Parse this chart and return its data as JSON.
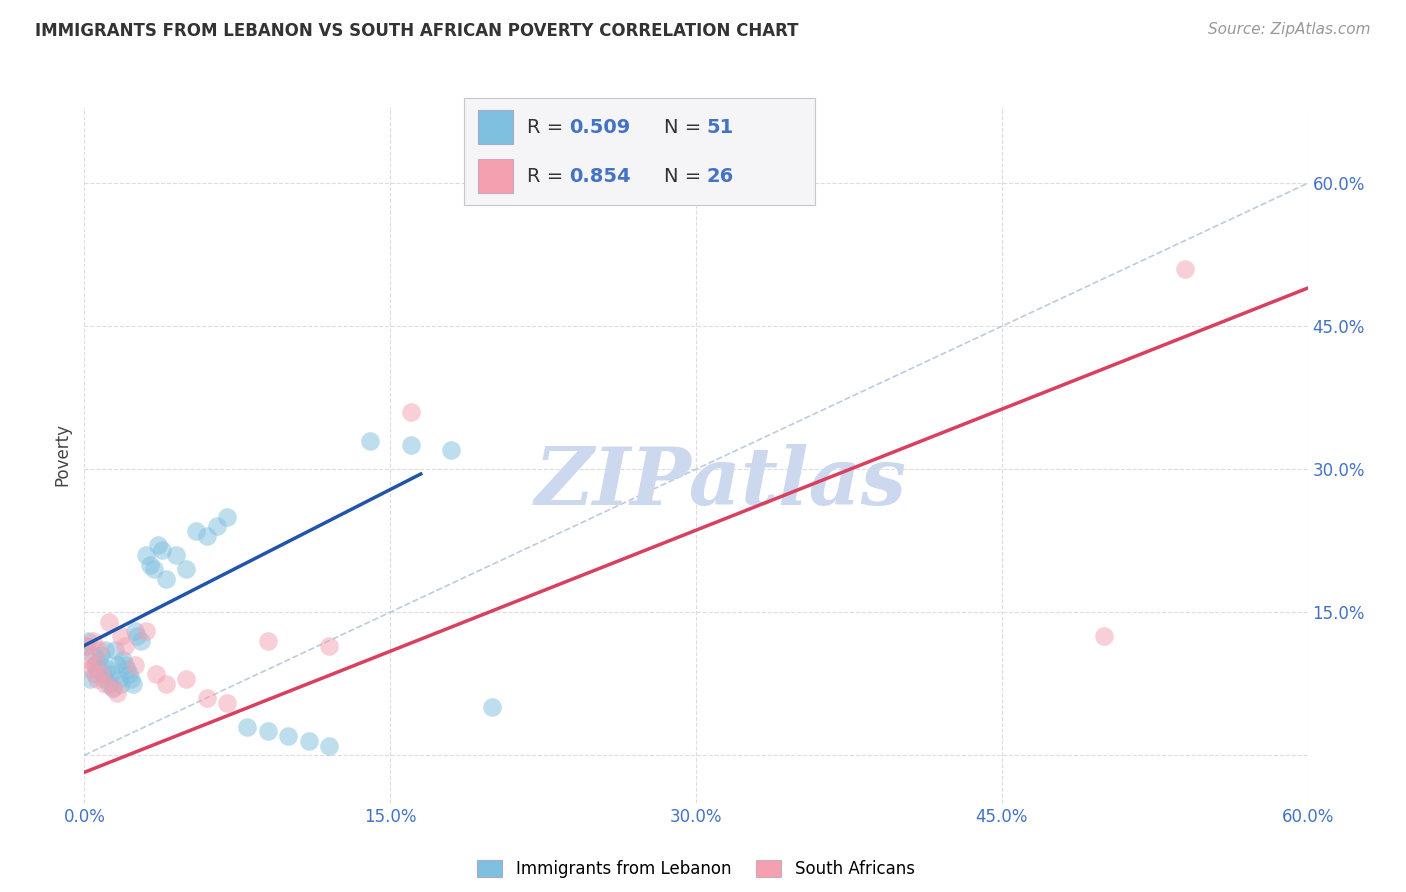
{
  "title": "IMMIGRANTS FROM LEBANON VS SOUTH AFRICAN POVERTY CORRELATION CHART",
  "source": "Source: ZipAtlas.com",
  "ylabel": "Poverty",
  "xlim": [
    0.0,
    0.6
  ],
  "ylim": [
    -0.05,
    0.68
  ],
  "xticks": [
    0.0,
    0.15,
    0.3,
    0.45,
    0.6
  ],
  "xtick_labels": [
    "0.0%",
    "15.0%",
    "30.0%",
    "45.0%",
    "60.0%"
  ],
  "yticks": [
    0.0,
    0.15,
    0.3,
    0.45,
    0.6
  ],
  "right_ytick_labels": [
    "15.0%",
    "30.0%",
    "45.0%",
    "60.0%"
  ],
  "background_color": "#ffffff",
  "grid_color": "#dddddd",
  "blue_color": "#7fbfdf",
  "pink_color": "#f4a0b0",
  "blue_line_color": "#2255aa",
  "pink_line_color": "#d94060",
  "diag_line_color": "#bbccdd",
  "watermark": "ZIPatlas",
  "watermark_color": "#ccd8ee",
  "legend_label1": "Immigrants from Lebanon",
  "legend_label2": "South Africans",
  "blue_scatter_x": [
    0.001,
    0.002,
    0.003,
    0.004,
    0.005,
    0.005,
    0.006,
    0.007,
    0.007,
    0.008,
    0.009,
    0.01,
    0.01,
    0.011,
    0.012,
    0.013,
    0.014,
    0.015,
    0.016,
    0.017,
    0.018,
    0.019,
    0.02,
    0.021,
    0.022,
    0.023,
    0.024,
    0.025,
    0.026,
    0.028,
    0.03,
    0.032,
    0.034,
    0.036,
    0.038,
    0.04,
    0.045,
    0.05,
    0.055,
    0.06,
    0.065,
    0.07,
    0.08,
    0.09,
    0.1,
    0.11,
    0.12,
    0.14,
    0.16,
    0.18,
    0.2
  ],
  "blue_scatter_y": [
    0.115,
    0.12,
    0.08,
    0.105,
    0.095,
    0.085,
    0.09,
    0.095,
    0.1,
    0.105,
    0.085,
    0.11,
    0.08,
    0.09,
    0.075,
    0.085,
    0.07,
    0.11,
    0.095,
    0.08,
    0.075,
    0.1,
    0.095,
    0.09,
    0.085,
    0.08,
    0.075,
    0.13,
    0.125,
    0.12,
    0.21,
    0.2,
    0.195,
    0.22,
    0.215,
    0.185,
    0.21,
    0.195,
    0.235,
    0.23,
    0.24,
    0.25,
    0.03,
    0.025,
    0.02,
    0.015,
    0.01,
    0.33,
    0.325,
    0.32,
    0.05
  ],
  "pink_scatter_x": [
    0.001,
    0.002,
    0.003,
    0.004,
    0.005,
    0.006,
    0.007,
    0.008,
    0.01,
    0.012,
    0.014,
    0.016,
    0.018,
    0.02,
    0.025,
    0.03,
    0.035,
    0.04,
    0.05,
    0.06,
    0.07,
    0.09,
    0.12,
    0.16,
    0.5,
    0.54
  ],
  "pink_scatter_y": [
    0.115,
    0.1,
    0.09,
    0.12,
    0.095,
    0.08,
    0.11,
    0.085,
    0.075,
    0.14,
    0.07,
    0.065,
    0.125,
    0.115,
    0.095,
    0.13,
    0.085,
    0.075,
    0.08,
    0.06,
    0.055,
    0.12,
    0.115,
    0.36,
    0.125,
    0.51
  ],
  "blue_line_x": [
    0.0,
    0.165
  ],
  "blue_line_y": [
    0.115,
    0.295
  ],
  "pink_line_x": [
    0.0,
    0.6
  ],
  "pink_line_y": [
    -0.018,
    0.49
  ]
}
